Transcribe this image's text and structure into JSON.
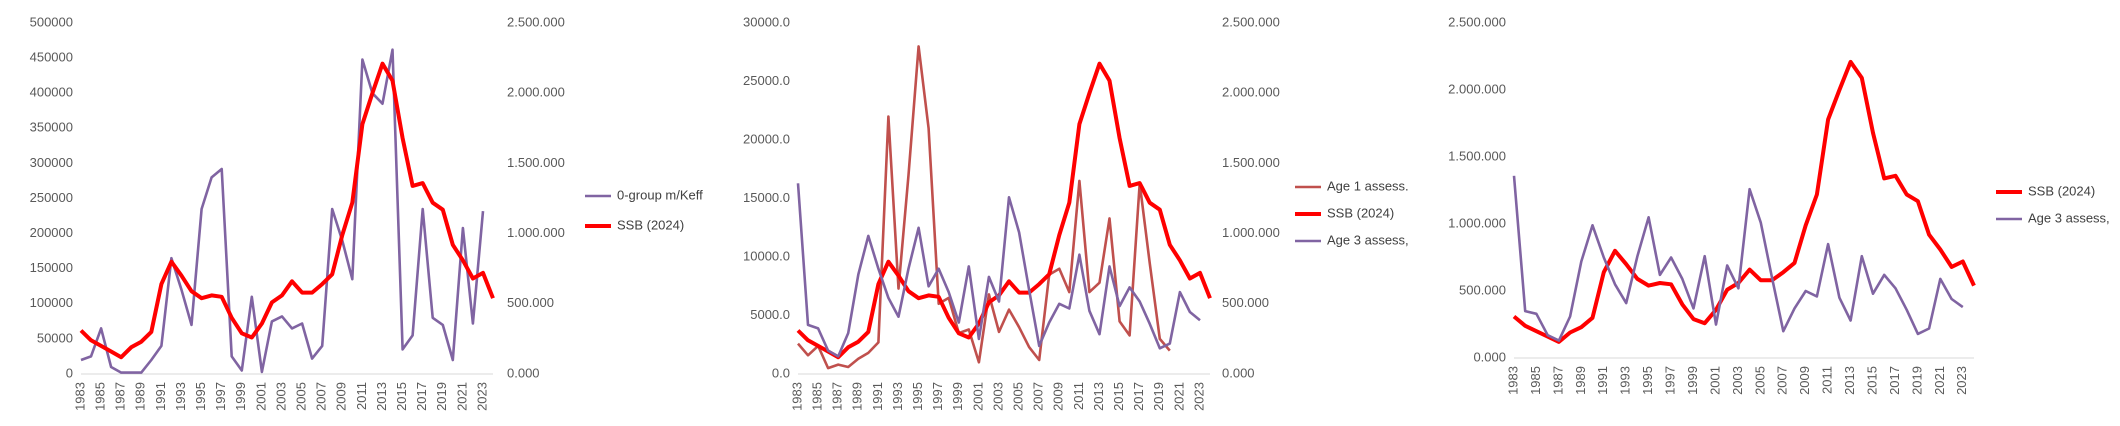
{
  "chart_data": [
    {
      "type": "line",
      "categories": [
        "1983",
        null,
        "1985",
        null,
        "1987",
        null,
        "1989",
        null,
        "1991",
        null,
        "1993",
        null,
        "1995",
        null,
        "1997",
        null,
        "1999",
        null,
        "2001",
        null,
        "2003",
        null,
        "2005",
        null,
        "2007",
        null,
        "2009",
        null,
        "2011",
        null,
        "2013",
        null,
        "2015",
        null,
        "2017",
        null,
        "2019",
        null,
        "2021",
        null,
        "2023",
        null
      ],
      "series": [
        {
          "name": "0-group m/Keff",
          "color": "#8064a2",
          "axis": "y",
          "values": [
            20000,
            25000,
            65000,
            10000,
            2000,
            2000,
            2000,
            20000,
            40000,
            165000,
            120000,
            70000,
            235000,
            280000,
            292000,
            25000,
            5000,
            110000,
            3000,
            75000,
            82000,
            65000,
            72000,
            22000,
            40000,
            235000,
            190000,
            135000,
            448000,
            400000,
            385000,
            462000,
            35000,
            55000,
            235000,
            80000,
            70000,
            20000,
            208000,
            72000,
            232000,
            null
          ]
        },
        {
          "name": "SSB (2024)",
          "color": "#ff0000",
          "axis": "y2",
          "values": [
            310,
            240,
            200,
            160,
            120,
            190,
            230,
            300,
            640,
            800,
            700,
            590,
            540,
            560,
            550,
            400,
            290,
            260,
            360,
            510,
            560,
            660,
            580,
            580,
            640,
            710,
            990,
            1220,
            1780,
            2000,
            2210,
            2090,
            1680,
            1340,
            1360,
            1220,
            1170,
            920,
            810,
            680,
            720,
            540
          ]
        }
      ],
      "ylim": [
        0,
        500000
      ],
      "yticks": [
        0,
        50000,
        100000,
        150000,
        200000,
        250000,
        300000,
        350000,
        400000,
        450000,
        500000
      ],
      "y2lim": [
        0,
        2500
      ],
      "y2ticks": [
        {
          "value": 0,
          "label": "0.000"
        },
        {
          "value": 500,
          "label": "500.000"
        },
        {
          "value": 1000,
          "label": "1.000.000"
        },
        {
          "value": 1500,
          "label": "1.500.000"
        },
        {
          "value": 2000,
          "label": "2.000.000"
        },
        {
          "value": 2500,
          "label": "2.500.000"
        }
      ],
      "legend": "right",
      "grid": false
    },
    {
      "type": "line",
      "categories": [
        "1983",
        null,
        "1985",
        null,
        "1987",
        null,
        "1989",
        null,
        "1991",
        null,
        "1993",
        null,
        "1995",
        null,
        "1997",
        null,
        "1999",
        null,
        "2001",
        null,
        "2003",
        null,
        "2005",
        null,
        "2007",
        null,
        "2009",
        null,
        "2011",
        null,
        "2013",
        null,
        "2015",
        null,
        "2017",
        null,
        "2019",
        null,
        "2021",
        null,
        "2023",
        null
      ],
      "series": [
        {
          "name": "Age 1 assess.",
          "color": "#c0504d",
          "axis": "y",
          "values": [
            2600,
            1600,
            2400,
            500,
            800,
            600,
            1300,
            1800,
            2700,
            22000,
            7300,
            17000,
            28000,
            21000,
            6000,
            6500,
            3500,
            3800,
            1000,
            6800,
            3600,
            5500,
            4000,
            2300,
            1200,
            8500,
            9000,
            7000,
            16500,
            7000,
            7800,
            13300,
            4500,
            3300,
            16300,
            9500,
            3000,
            2000,
            null,
            null,
            null,
            null
          ]
        },
        {
          "name": "SSB (2024)",
          "color": "#ff0000",
          "axis": "y2",
          "values": [
            310,
            240,
            200,
            160,
            120,
            190,
            230,
            300,
            640,
            800,
            700,
            590,
            540,
            560,
            550,
            400,
            290,
            260,
            360,
            510,
            560,
            660,
            580,
            580,
            640,
            710,
            990,
            1220,
            1780,
            2000,
            2210,
            2090,
            1680,
            1340,
            1360,
            1220,
            1170,
            920,
            810,
            680,
            720,
            540
          ]
        },
        {
          "name": "Age 3 assess,",
          "color": "#8064a2",
          "axis": "y",
          "values": [
            16300,
            4200,
            3900,
            2000,
            1500,
            3500,
            8500,
            11800,
            9000,
            6500,
            4900,
            9000,
            12500,
            7500,
            9000,
            7000,
            4400,
            9200,
            3000,
            8300,
            6200,
            15100,
            12100,
            7200,
            2400,
            4400,
            6000,
            5600,
            10200,
            5400,
            3400,
            9200,
            5800,
            7400,
            6200,
            4300,
            2200,
            2600,
            7000,
            5300,
            4600,
            null
          ]
        }
      ],
      "ylim": [
        0,
        30000
      ],
      "yticks": [
        {
          "value": 0,
          "label": "0.0"
        },
        {
          "value": 5000,
          "label": "5000.0"
        },
        {
          "value": 10000,
          "label": "10000.0"
        },
        {
          "value": 15000,
          "label": "15000.0"
        },
        {
          "value": 20000,
          "label": "20000.0"
        },
        {
          "value": 25000,
          "label": "25000.0"
        },
        {
          "value": 30000,
          "label": "30000.0"
        }
      ],
      "y2lim": [
        0,
        2500
      ],
      "y2ticks": [
        {
          "value": 0,
          "label": "0.000"
        },
        {
          "value": 500,
          "label": "500.000"
        },
        {
          "value": 1000,
          "label": "1.000.000"
        },
        {
          "value": 1500,
          "label": "1.500.000"
        },
        {
          "value": 2000,
          "label": "2.000.000"
        },
        {
          "value": 2500,
          "label": "2.500.000"
        }
      ],
      "legend": "right",
      "grid": false
    },
    {
      "type": "line",
      "categories": [
        "1983",
        null,
        "1985",
        null,
        "1987",
        null,
        "1989",
        null,
        "1991",
        null,
        "1993",
        null,
        "1995",
        null,
        "1997",
        null,
        "1999",
        null,
        "2001",
        null,
        "2003",
        null,
        "2005",
        null,
        "2007",
        null,
        "2009",
        null,
        "2011",
        null,
        "2013",
        null,
        "2015",
        null,
        "2017",
        null,
        "2019",
        null,
        "2021",
        null,
        "2023",
        null
      ],
      "series": [
        {
          "name": "SSB (2024)",
          "color": "#ff0000",
          "axis": "y",
          "values": [
            310,
            240,
            200,
            160,
            120,
            190,
            230,
            300,
            640,
            800,
            700,
            590,
            540,
            560,
            550,
            400,
            290,
            260,
            360,
            510,
            560,
            660,
            580,
            580,
            640,
            710,
            990,
            1220,
            1780,
            2000,
            2210,
            2090,
            1680,
            1340,
            1360,
            1220,
            1170,
            920,
            810,
            680,
            720,
            540
          ]
        },
        {
          "name": "Age 3 assess,",
          "color": "#8064a2",
          "axis": "y",
          "values": [
            1360,
            350,
            330,
            170,
            130,
            310,
            720,
            990,
            750,
            550,
            410,
            760,
            1050,
            620,
            750,
            590,
            370,
            760,
            250,
            690,
            520,
            1260,
            1010,
            600,
            200,
            370,
            500,
            460,
            850,
            450,
            280,
            760,
            480,
            620,
            520,
            360,
            180,
            220,
            590,
            440,
            380,
            null
          ]
        }
      ],
      "ylim": [
        0,
        2500
      ],
      "yticks": [
        {
          "value": 0,
          "label": "0.000"
        },
        {
          "value": 500,
          "label": "500.000"
        },
        {
          "value": 1000,
          "label": "1.000.000"
        },
        {
          "value": 1500,
          "label": "1.500.000"
        },
        {
          "value": 2000,
          "label": "2.000.000"
        },
        {
          "value": 2500,
          "label": "2.500.000"
        }
      ],
      "legend": "right",
      "grid": false
    }
  ]
}
